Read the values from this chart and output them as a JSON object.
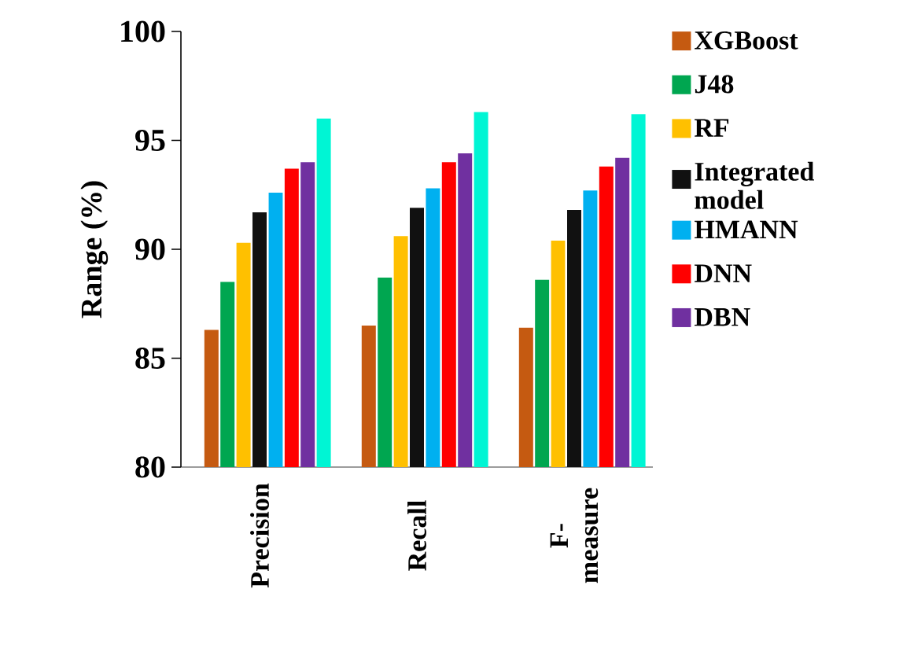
{
  "chart_data": {
    "type": "bar",
    "ylabel": "Range (%)",
    "categories": [
      "Precision",
      "Recall",
      "F-measure"
    ],
    "series": [
      {
        "name": "XGBoost",
        "color": "#c55a11",
        "values": [
          86.3,
          86.5,
          86.4
        ]
      },
      {
        "name": "J48",
        "color": "#00a650",
        "values": [
          88.5,
          88.7,
          88.6
        ]
      },
      {
        "name": "RF",
        "color": "#ffc000",
        "values": [
          90.3,
          90.6,
          90.4
        ]
      },
      {
        "name": "Integrated model",
        "color": "#111111",
        "values": [
          91.7,
          91.9,
          91.8
        ]
      },
      {
        "name": "HMANN",
        "color": "#00b0f0",
        "values": [
          92.6,
          92.8,
          92.7
        ]
      },
      {
        "name": "DNN",
        "color": "#ff0000",
        "values": [
          93.7,
          94.0,
          93.8
        ]
      },
      {
        "name": "DBN",
        "color": "#7030a0",
        "values": [
          94.0,
          94.4,
          94.2
        ]
      },
      {
        "color": "#00f5d4",
        "values": [
          96.0,
          96.3,
          96.2
        ]
      }
    ],
    "ylim": [
      80,
      100
    ],
    "yticks": [
      80,
      85,
      90,
      95,
      100
    ],
    "legend": "right",
    "grid": false
  }
}
